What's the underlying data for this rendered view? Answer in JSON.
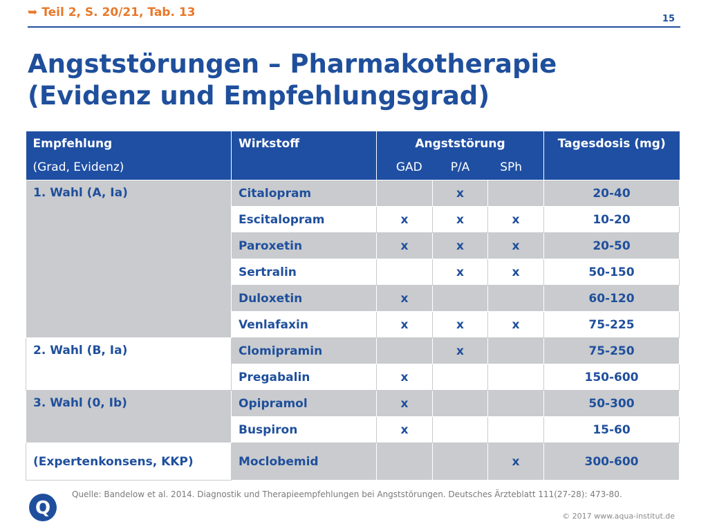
{
  "header": {
    "arrow": "➥",
    "reference": "Teil 2, S. 20/21, Tab. 13",
    "page_number": "15"
  },
  "title": {
    "line1": "Angststörungen – Pharmakotherapie",
    "line2": "(Evidenz und Empfehlungsgrad)"
  },
  "table": {
    "col1_header": "Empfehlung",
    "col1_sub": "(Grad, Evidenz)",
    "col2_header": "Wirkstoff",
    "col3_header": "Angststörung",
    "col3_sub": [
      "GAD",
      "P/A",
      "SPh"
    ],
    "col4_header": "Tagesdosis (mg)",
    "groups": [
      {
        "label": "1. Wahl  (A, Ia)",
        "rows": [
          {
            "drug": "Citalopram",
            "gad": "",
            "pa": "x",
            "sph": "",
            "dose": "20-40"
          },
          {
            "drug": "Escitalopram",
            "gad": "x",
            "pa": "x",
            "sph": "x",
            "dose": "10-20"
          },
          {
            "drug": "Paroxetin",
            "gad": "x",
            "pa": "x",
            "sph": "x",
            "dose": "20-50"
          },
          {
            "drug": "Sertralin",
            "gad": "",
            "pa": "x",
            "sph": "x",
            "dose": "50-150"
          },
          {
            "drug": "Duloxetin",
            "gad": "x",
            "pa": "",
            "sph": "",
            "dose": "60-120"
          },
          {
            "drug": "Venlafaxin",
            "gad": "x",
            "pa": "x",
            "sph": "x",
            "dose": "75-225"
          }
        ]
      },
      {
        "label": "2. Wahl  (B, Ia)",
        "rows": [
          {
            "drug": "Clomipramin",
            "gad": "",
            "pa": "x",
            "sph": "",
            "dose": "75-250"
          },
          {
            "drug": "Pregabalin",
            "gad": "x",
            "pa": "",
            "sph": "",
            "dose": "150-600"
          }
        ]
      },
      {
        "label": "3. Wahl  (0, Ib)",
        "rows": [
          {
            "drug": "Opipramol",
            "gad": "x",
            "pa": "",
            "sph": "",
            "dose": "50-300"
          },
          {
            "drug": "Buspiron",
            "gad": "x",
            "pa": "",
            "sph": "",
            "dose": "15-60"
          }
        ]
      },
      {
        "label": "(Expertenkonsens,  KKP)",
        "rows": [
          {
            "drug": "Moclobemid",
            "gad": "",
            "pa": "",
            "sph": "x",
            "dose": "300-600"
          }
        ]
      }
    ]
  },
  "source": "Quelle: Bandelow et al. 2014. Diagnostik und Therapieempfehlungen bei Angststörungen. Deutsches Ärzteblatt 111(27-28): 473-80.",
  "copyright": "© 2017 www.aqua-institut.de",
  "logo": {
    "letter": "Q",
    "color": "#1f4f9c"
  },
  "colors": {
    "brand_blue": "#1f4f9c",
    "header_blue": "#1f4fa3",
    "accent_orange": "#e8782a",
    "row_gray": "#c9cbce"
  }
}
